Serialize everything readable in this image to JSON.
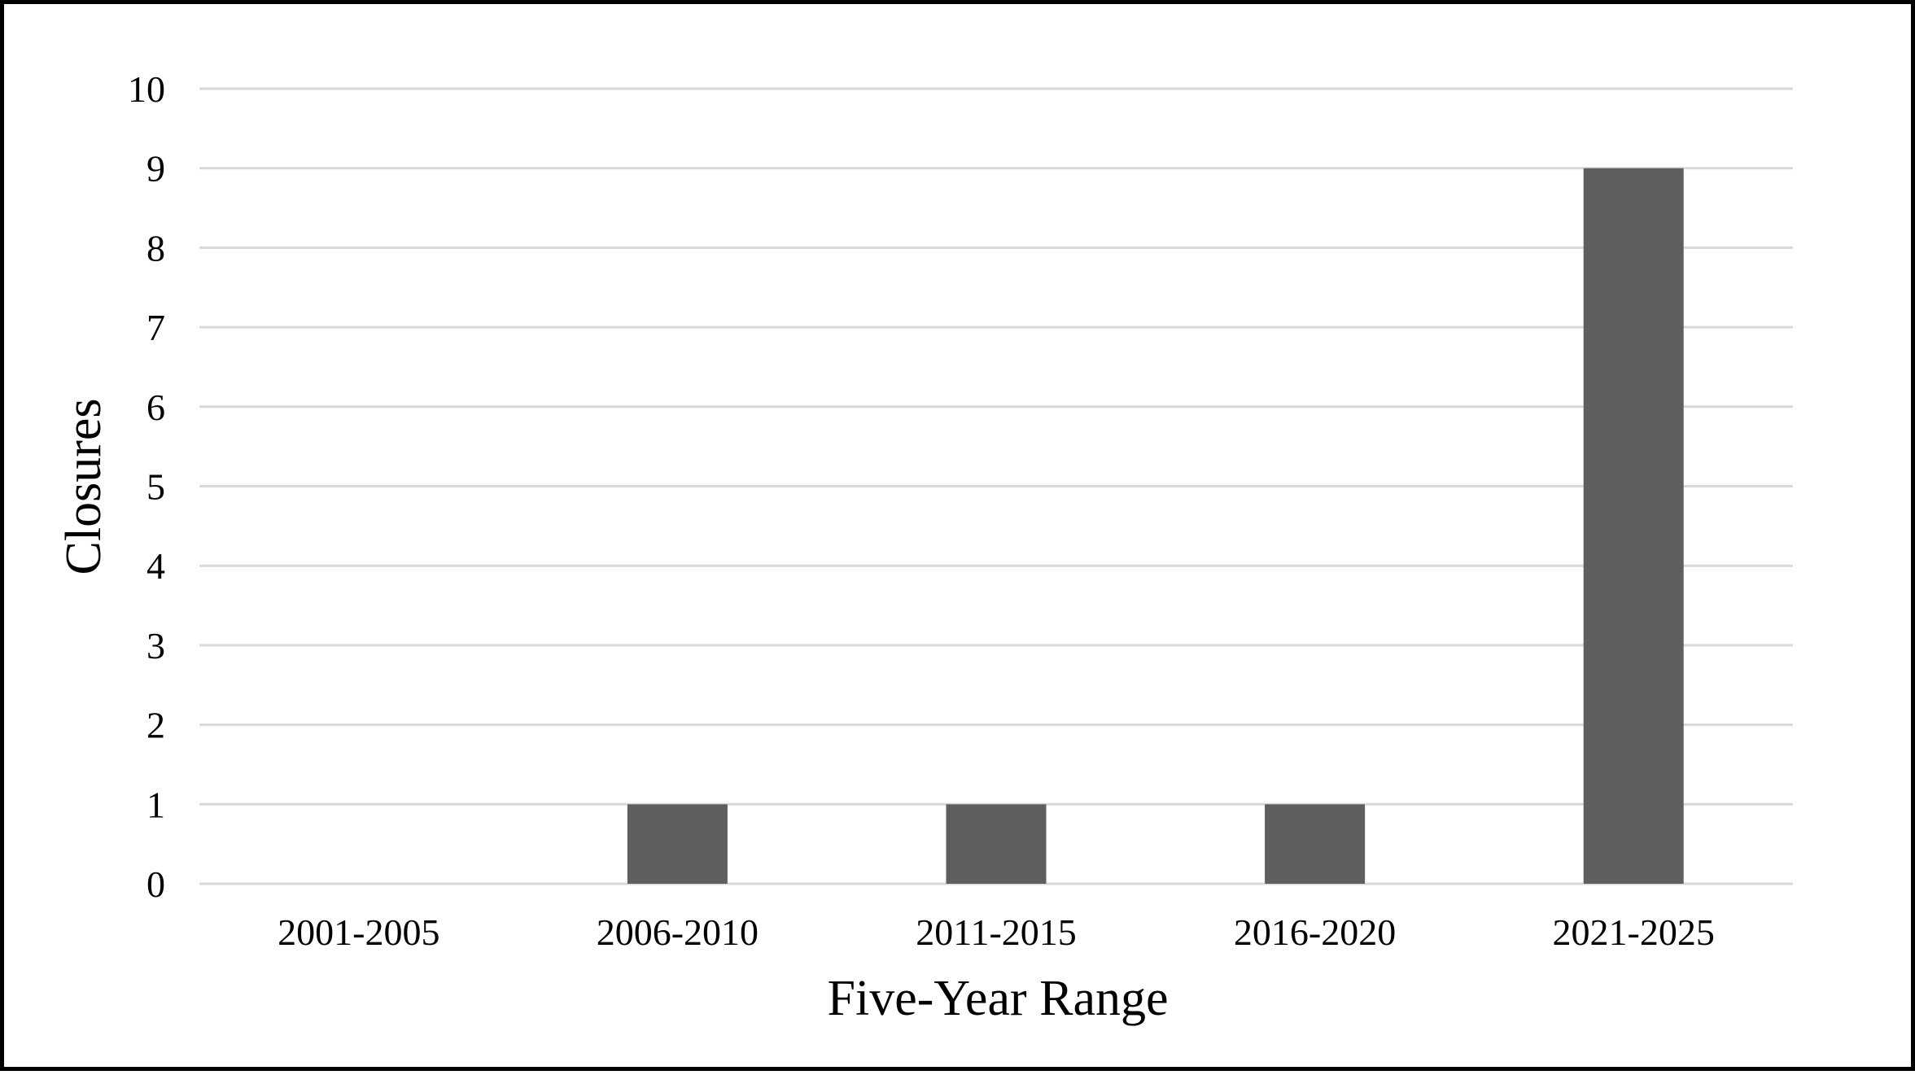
{
  "chart_data": {
    "type": "bar",
    "categories": [
      "2001-2005",
      "2006-2010",
      "2011-2015",
      "2016-2020",
      "2021-2025"
    ],
    "values": [
      0,
      1,
      1,
      1,
      9
    ],
    "title": "",
    "xlabel": "Five-Year Range",
    "ylabel": "Closures",
    "ylim": [
      0,
      10
    ],
    "yticks": [
      "0",
      "1",
      "2",
      "3",
      "4",
      "5",
      "6",
      "7",
      "8",
      "9",
      "10"
    ],
    "grid": true,
    "legend": "none",
    "colors": {
      "bar": "#5f5f5f",
      "gridline": "#d9d9d9",
      "border": "#000000",
      "background": "#ffffff"
    }
  }
}
